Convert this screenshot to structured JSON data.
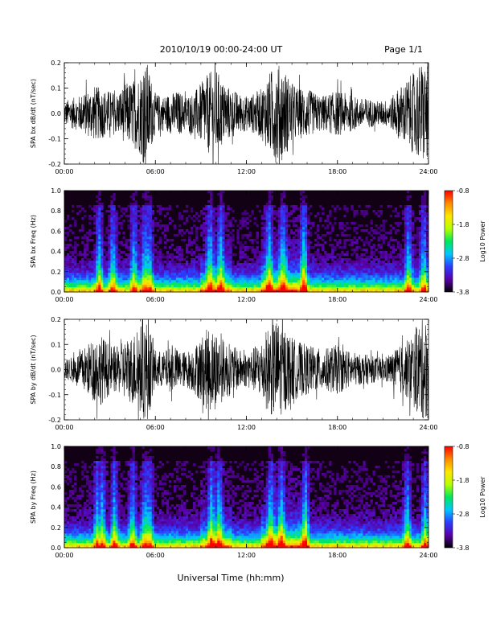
{
  "header": {
    "title": "2010/10/19   00:00-24:00 UT",
    "page": "Page 1/1"
  },
  "footer": {
    "xlabel": "Universal Time (hh:mm)"
  },
  "colors": {
    "trace": "#000000",
    "spectrogram_background": "#120014",
    "colorbar_stops": [
      "#000000",
      "#5b00a8",
      "#2b3dff",
      "#00c8ff",
      "#00e85a",
      "#b8ff00",
      "#ffe600",
      "#ff8a00",
      "#ff0000"
    ]
  },
  "chart_data": [
    {
      "type": "line",
      "panel": "bx-waveform",
      "ylabel": "SPA bx dB/dt (nT/sec)",
      "xlim": [
        0,
        24
      ],
      "ylim": [
        -0.2,
        0.2
      ],
      "x_ticks": [
        "00:00",
        "06:00",
        "12:00",
        "18:00",
        "24:00"
      ],
      "y_ticks": [
        "-0.2",
        "-0.1",
        "0.0",
        "0.1",
        "0.2"
      ],
      "y_tick_values": [
        -0.2,
        -0.1,
        0.0,
        0.1,
        0.2
      ],
      "envelope": {
        "hours": [
          0,
          0.5,
          1,
          1.5,
          2,
          2.4,
          3,
          3.5,
          4,
          4.5,
          5,
          5.2,
          5.5,
          5.8,
          6,
          6.5,
          7,
          7.5,
          8,
          8.5,
          9,
          9.5,
          10,
          10.5,
          11,
          11.5,
          12,
          12.5,
          13,
          13.5,
          14,
          14.5,
          15,
          15.5,
          16,
          16.5,
          17,
          17.5,
          18,
          18.5,
          19,
          19.5,
          20,
          20.5,
          21,
          21.5,
          22,
          22.5,
          23,
          23.5,
          24
        ],
        "amplitude": [
          0.05,
          0.06,
          0.07,
          0.09,
          0.11,
          0.1,
          0.09,
          0.08,
          0.12,
          0.13,
          0.16,
          0.2,
          0.2,
          0.12,
          0.08,
          0.07,
          0.08,
          0.09,
          0.07,
          0.08,
          0.12,
          0.16,
          0.18,
          0.12,
          0.1,
          0.08,
          0.07,
          0.08,
          0.1,
          0.16,
          0.2,
          0.18,
          0.12,
          0.1,
          0.1,
          0.08,
          0.07,
          0.08,
          0.09,
          0.08,
          0.07,
          0.06,
          0.06,
          0.05,
          0.05,
          0.06,
          0.1,
          0.13,
          0.16,
          0.2,
          0.2
        ]
      }
    },
    {
      "type": "heatmap",
      "panel": "bx-spectrogram",
      "ylabel": "SPA bx Freq (Hz)",
      "xlim": [
        0,
        24
      ],
      "ylim": [
        0,
        1.0
      ],
      "x_ticks": [
        "00:00",
        "06:00",
        "12:00",
        "18:00",
        "24:00"
      ],
      "y_ticks": [
        "0.0",
        "0.2",
        "0.4",
        "0.6",
        "0.8",
        "1.0"
      ],
      "y_tick_values": [
        0.0,
        0.2,
        0.4,
        0.6,
        0.8,
        1.0
      ],
      "colorbar": {
        "label": "Log10 Power",
        "min": -3.8,
        "max": -0.8,
        "ticks": [
          "-0.8",
          "-1.8",
          "-2.8",
          "-3.8"
        ],
        "tick_values": [
          -0.8,
          -1.8,
          -2.8,
          -3.8
        ]
      },
      "activity_bands_hours": [
        2.3,
        3.2,
        4.6,
        5.3,
        5.6,
        9.6,
        10.3,
        13.5,
        14.4,
        15.8,
        22.7,
        23.7
      ]
    },
    {
      "type": "line",
      "panel": "by-waveform",
      "ylabel": "SPA by dB/dt (nT/sec)",
      "xlim": [
        0,
        24
      ],
      "ylim": [
        -0.2,
        0.2
      ],
      "x_ticks": [
        "00:00",
        "06:00",
        "12:00",
        "18:00",
        "24:00"
      ],
      "y_ticks": [
        "-0.2",
        "-0.1",
        "0.0",
        "0.1",
        "0.2"
      ],
      "y_tick_values": [
        -0.2,
        -0.1,
        0.0,
        0.1,
        0.2
      ],
      "envelope": {
        "hours": [
          0,
          0.5,
          1,
          1.5,
          2,
          2.4,
          3,
          3.5,
          4,
          4.5,
          5,
          5.2,
          5.5,
          5.8,
          6,
          6.5,
          7,
          7.5,
          8,
          8.5,
          9,
          9.5,
          10,
          10.5,
          11,
          11.5,
          12,
          12.5,
          13,
          13.5,
          14,
          14.5,
          15,
          15.5,
          16,
          16.5,
          17,
          17.5,
          18,
          18.5,
          19,
          19.5,
          20,
          20.5,
          21,
          21.5,
          22,
          22.5,
          23,
          23.5,
          24
        ],
        "amplitude": [
          0.04,
          0.05,
          0.07,
          0.1,
          0.13,
          0.14,
          0.1,
          0.09,
          0.12,
          0.14,
          0.18,
          0.2,
          0.2,
          0.13,
          0.08,
          0.07,
          0.09,
          0.08,
          0.07,
          0.09,
          0.13,
          0.17,
          0.16,
          0.12,
          0.1,
          0.08,
          0.07,
          0.09,
          0.12,
          0.18,
          0.2,
          0.17,
          0.13,
          0.11,
          0.1,
          0.09,
          0.08,
          0.09,
          0.1,
          0.08,
          0.07,
          0.06,
          0.06,
          0.05,
          0.05,
          0.06,
          0.09,
          0.11,
          0.15,
          0.2,
          0.2
        ]
      }
    },
    {
      "type": "heatmap",
      "panel": "by-spectrogram",
      "ylabel": "SPA by Freq (Hz)",
      "xlim": [
        0,
        24
      ],
      "ylim": [
        0,
        1.0
      ],
      "x_ticks": [
        "00:00",
        "06:00",
        "12:00",
        "18:00",
        "24:00"
      ],
      "y_ticks": [
        "0.0",
        "0.2",
        "0.4",
        "0.6",
        "0.8",
        "1.0"
      ],
      "y_tick_values": [
        0.0,
        0.2,
        0.4,
        0.6,
        0.8,
        1.0
      ],
      "colorbar": {
        "label": "Log10 Power",
        "min": -3.8,
        "max": -0.8,
        "ticks": [
          "-0.8",
          "-1.8",
          "-2.8",
          "-3.8"
        ],
        "tick_values": [
          -0.8,
          -1.8,
          -2.8,
          -3.8
        ]
      },
      "activity_bands_hours": [
        2.2,
        2.5,
        3.3,
        4.5,
        5.3,
        5.6,
        9.7,
        10.2,
        13.6,
        14.3,
        15.9,
        22.6,
        23.8
      ]
    }
  ]
}
